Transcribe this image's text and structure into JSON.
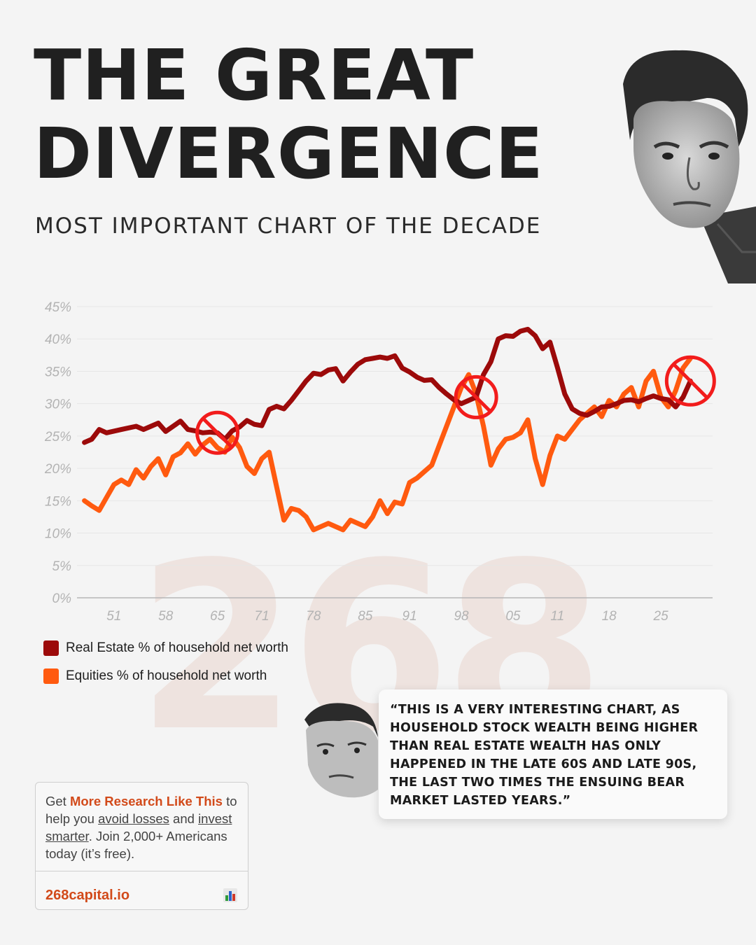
{
  "header": {
    "title_line1": "THE GREAT",
    "title_line2": "DIVERGENCE",
    "subtitle": "MOST IMPORTANT CHART OF THE DECADE"
  },
  "watermark": "268",
  "chart_data": {
    "type": "line",
    "xlabel": "",
    "ylabel": "",
    "x_tick_labels": [
      "51",
      "58",
      "65",
      "71",
      "78",
      "85",
      "91",
      "98",
      "05",
      "11",
      "18",
      "25"
    ],
    "x_tick_years": [
      1951,
      1958,
      1965,
      1971,
      1978,
      1985,
      1991,
      1998,
      2005,
      2011,
      2018,
      2025
    ],
    "xlim": [
      1946,
      2032
    ],
    "y_tick_labels": [
      "0%",
      "5%",
      "10%",
      "15%",
      "20%",
      "25%",
      "30%",
      "35%",
      "40%",
      "45%"
    ],
    "ylim": [
      0,
      45
    ],
    "grid": true,
    "legend_position": "bottom-left",
    "series": [
      {
        "name": "Real Estate % of household net worth",
        "color": "#9c0a0a",
        "x": [
          1947,
          1948,
          1949,
          1950,
          1952,
          1954,
          1955,
          1956,
          1957,
          1958,
          1960,
          1961,
          1962,
          1963,
          1964,
          1965,
          1966,
          1967,
          1968,
          1969,
          1970,
          1971,
          1972,
          1973,
          1974,
          1975,
          1976,
          1977,
          1978,
          1979,
          1980,
          1981,
          1982,
          1983,
          1984,
          1985,
          1986,
          1987,
          1988,
          1989,
          1990,
          1991,
          1992,
          1993,
          1994,
          1995,
          1996,
          1997,
          1998,
          1999,
          2000,
          2001,
          2002,
          2003,
          2004,
          2005,
          2006,
          2007,
          2008,
          2009,
          2010,
          2011,
          2012,
          2013,
          2014,
          2015,
          2016,
          2017,
          2018,
          2019,
          2020,
          2021,
          2022,
          2023,
          2024,
          2025,
          2026,
          2027,
          2028,
          2029
        ],
        "values": [
          24,
          24.5,
          26,
          25.5,
          26,
          26.5,
          26,
          26.5,
          27,
          25.7,
          27.3,
          26,
          25.8,
          25.5,
          25.6,
          25.5,
          24.5,
          25.8,
          26.4,
          27.4,
          26.8,
          26.6,
          29.1,
          29.6,
          29.2,
          30.5,
          32,
          33.5,
          34.7,
          34.5,
          35.2,
          35.4,
          33.5,
          34.9,
          36.1,
          36.8,
          37,
          37.2,
          37,
          37.4,
          35.5,
          34.9,
          34.1,
          33.6,
          33.7,
          32.5,
          31.5,
          30.6,
          30,
          30.5,
          31,
          34.5,
          36.5,
          40,
          40.5,
          40.4,
          41.2,
          41.5,
          40.5,
          38.5,
          39.5,
          35.6,
          31.5,
          29.2,
          28.5,
          28.2,
          28.8,
          29.5,
          29.6,
          30,
          30.5,
          30.6,
          30.3,
          30.8,
          31.2,
          30.8,
          30.6,
          29.5,
          31,
          33.5
        ]
      },
      {
        "name": "Equities % of household net worth",
        "color": "#ff5a0f",
        "x": [
          1947,
          1948,
          1949,
          1950,
          1951,
          1952,
          1953,
          1954,
          1955,
          1956,
          1957,
          1958,
          1959,
          1960,
          1961,
          1962,
          1963,
          1964,
          1965,
          1966,
          1967,
          1968,
          1969,
          1970,
          1971,
          1972,
          1973,
          1974,
          1975,
          1976,
          1977,
          1978,
          1979,
          1980,
          1981,
          1982,
          1983,
          1984,
          1985,
          1986,
          1987,
          1988,
          1989,
          1990,
          1991,
          1992,
          1993,
          1994,
          1995,
          1996,
          1997,
          1998,
          1999,
          2000,
          2001,
          2002,
          2003,
          2004,
          2005,
          2006,
          2007,
          2008,
          2009,
          2010,
          2011,
          2012,
          2013,
          2014,
          2015,
          2016,
          2017,
          2018,
          2019,
          2020,
          2021,
          2022,
          2023,
          2024,
          2025,
          2026,
          2027,
          2028,
          2029
        ],
        "values": [
          15,
          14.2,
          13.5,
          15.5,
          17.5,
          18.2,
          17.5,
          19.8,
          18.5,
          20.3,
          21.5,
          19,
          21.8,
          22.4,
          23.8,
          22.2,
          23.6,
          24.5,
          23.2,
          22.5,
          24.8,
          23.2,
          20.3,
          19.2,
          21.5,
          22.5,
          17.2,
          12,
          13.8,
          13.5,
          12.5,
          10.5,
          11,
          11.5,
          11,
          10.5,
          12,
          11.5,
          11,
          12.5,
          15,
          13,
          14.8,
          14.5,
          17.8,
          18.5,
          19.5,
          20.5,
          23.5,
          26.5,
          29.5,
          32.5,
          34.5,
          31.5,
          26.5,
          20.5,
          23,
          24.5,
          24.8,
          25.5,
          27.5,
          21.5,
          17.5,
          22,
          25,
          24.5,
          26,
          27.5,
          28.5,
          29.5,
          28,
          30.5,
          29.5,
          31.5,
          32.5,
          29.5,
          33.5,
          35,
          31,
          29.5,
          32,
          35.5,
          37
        ]
      }
    ],
    "highlighted_crossovers": [
      1965,
      2000,
      2029
    ]
  },
  "quote": {
    "text": "“THIS IS A VERY INTERESTING CHART, AS HOUSEHOLD STOCK WEALTH BEING HIGHER THAN REAL ESTATE WEALTH HAS ONLY HAPPENED IN THE LATE 60S AND LATE 90S, THE LAST TWO TIMES THE ENSUING BEAR MARKET LASTED YEARS.”"
  },
  "cta": {
    "get": "Get",
    "highlight": "More Research Like This",
    "to_help": "to help you",
    "avoid": "avoid losses",
    "and": "and",
    "invest": "invest smarter",
    "rest": ". Join 2,000+ Americans today (it’s free).",
    "link": "268capital.io",
    "icon": "bar-chart-icon"
  }
}
